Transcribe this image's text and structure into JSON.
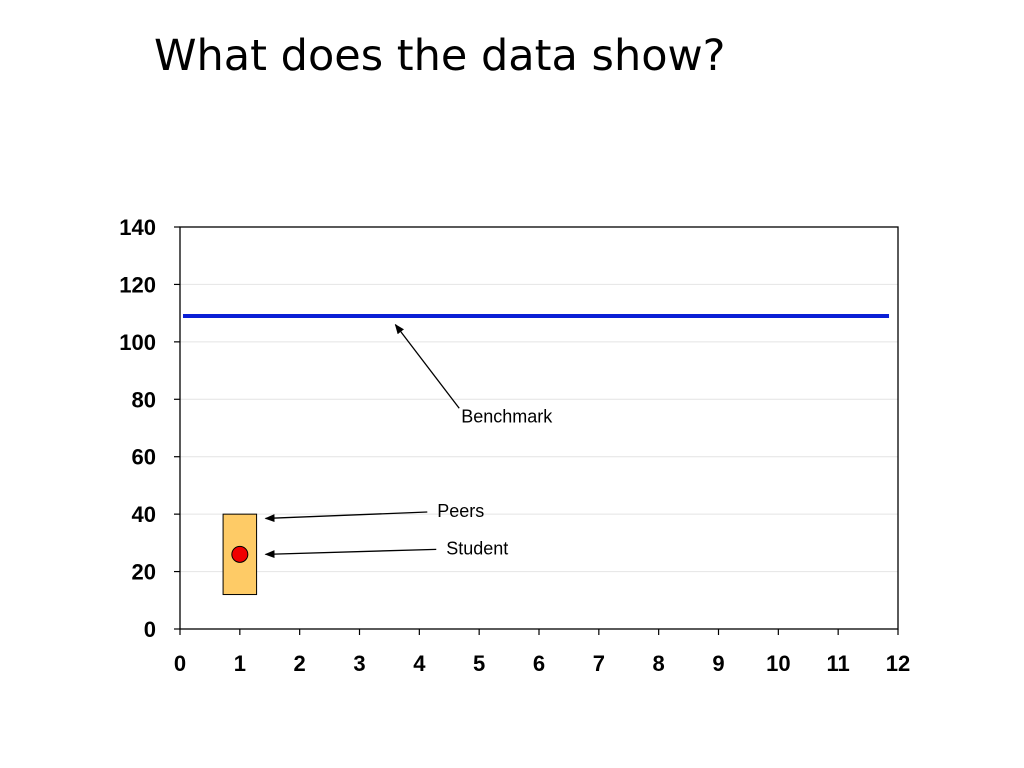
{
  "slide": {
    "title": "What does the data show?"
  },
  "chart_data": {
    "type": "scatter",
    "title": "",
    "xlabel": "",
    "ylabel": "",
    "xlim": [
      0,
      12
    ],
    "ylim": [
      0,
      140
    ],
    "x_ticks": [
      "0",
      "1",
      "2",
      "3",
      "4",
      "5",
      "6",
      "7",
      "8",
      "9",
      "10",
      "11",
      "12"
    ],
    "y_ticks": [
      "0",
      "20",
      "40",
      "60",
      "80",
      "100",
      "120",
      "140"
    ],
    "grid": "horizontal",
    "legend": "none",
    "benchmark": {
      "label": "Benchmark",
      "y": 109,
      "x_range": [
        0.05,
        11.85
      ],
      "color": "#0a1fd6"
    },
    "peers_range": {
      "label": "Peers",
      "x": 1,
      "x_range": [
        0.72,
        1.28
      ],
      "y_low": 12,
      "y_high": 40,
      "fill": "#fecb66"
    },
    "student": {
      "label": "Student",
      "x": 1,
      "y": 26,
      "color": "#f00000"
    },
    "annotations": [
      {
        "target": "benchmark",
        "text": "Benchmark",
        "text_x": 4.7,
        "text_y": 72,
        "arrow_to": [
          3.6,
          106
        ]
      },
      {
        "target": "peers_range",
        "text": "Peers",
        "text_x": 4.3,
        "text_y": 39,
        "arrow_to": [
          1.43,
          38.5
        ]
      },
      {
        "target": "student",
        "text": "Student",
        "text_x": 4.45,
        "text_y": 26,
        "arrow_to": [
          1.43,
          26
        ]
      }
    ]
  }
}
